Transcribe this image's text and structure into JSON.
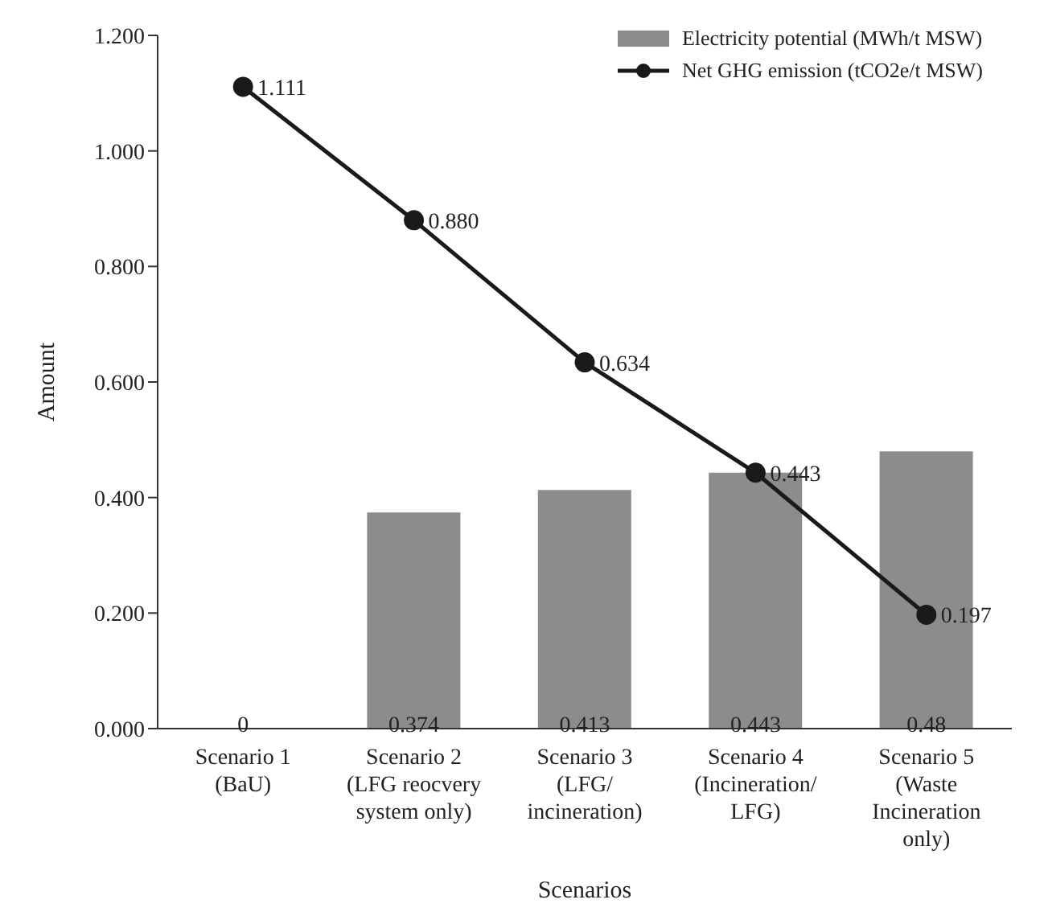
{
  "chart_data": {
    "type": "bar",
    "xlabel": "Scenarios",
    "ylabel": "Amount",
    "categories": [
      "Scenario 1\n(BaU)",
      "Scenario 2\n(LFG reocvery\nsystem only)",
      "Scenario 3\n(LFG/\nincineration)",
      "Scenario 4\n(Incineration/\nLFG)",
      "Scenario 5\n(Waste\nIncineration\nonly)"
    ],
    "series": [
      {
        "name": "Electricity potential (MWh/t MSW)",
        "color": "#8c8c8c",
        "values": [
          0,
          0.374,
          0.413,
          0.443,
          0.48
        ],
        "value_labels": [
          "0",
          "0.374",
          "0.413",
          "0.443",
          "0.48"
        ]
      },
      {
        "name": "Net GHG emission (tCO2e/t MSW)",
        "type": "line",
        "color": "#1a1a1a",
        "values": [
          1.111,
          0.88,
          0.634,
          0.443,
          0.197
        ],
        "value_labels": [
          "1.111",
          "0.880",
          "0.634",
          "0.443",
          "0.197"
        ]
      }
    ],
    "ylim": [
      0,
      1.2
    ],
    "yticks": [
      {
        "value": 0,
        "label": "0.000"
      },
      {
        "value": 0.2,
        "label": "0.200"
      },
      {
        "value": 0.4,
        "label": "0.400"
      },
      {
        "value": 0.6,
        "label": "0.600"
      },
      {
        "value": 0.8,
        "label": "0.800"
      },
      {
        "value": 1,
        "label": "1.000"
      },
      {
        "value": 1.2,
        "label": "1.200"
      }
    ],
    "legend": "top right",
    "marker": "circle",
    "line_style": "solid"
  }
}
